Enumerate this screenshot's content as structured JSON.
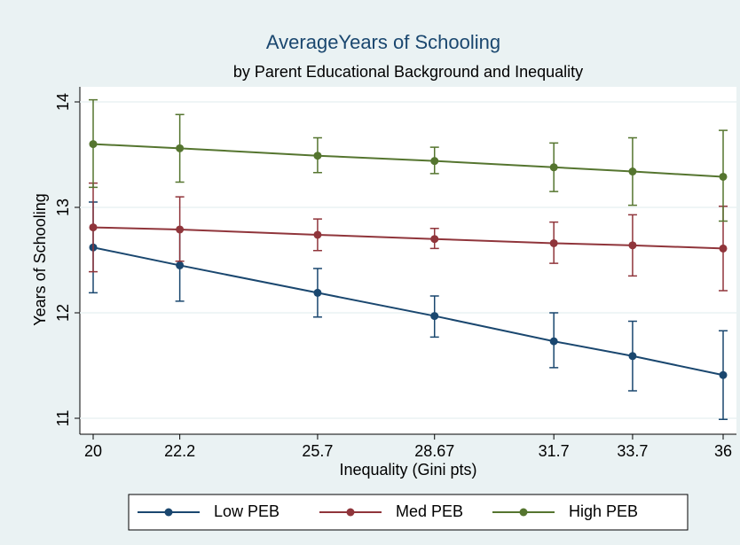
{
  "chart_data": {
    "type": "line",
    "title": "AverageYears of Schooling",
    "subtitle": "by Parent Educational Background and Inequality",
    "x_label": "Inequality (Gini pts)",
    "y_label": "Years of Schooling",
    "x": [
      20,
      22.2,
      25.7,
      28.67,
      31.7,
      33.7,
      36
    ],
    "xlim": [
      20,
      36
    ],
    "xticks": [
      20,
      22.2,
      25.7,
      28.67,
      31.7,
      33.7,
      36
    ],
    "ylim": [
      11,
      14
    ],
    "yticks": [
      11,
      12,
      13,
      14
    ],
    "grid": true,
    "legend": "bottom",
    "series": [
      {
        "name": "Low PEB",
        "color": "#1a476f",
        "values": [
          12.62,
          12.45,
          12.19,
          11.97,
          11.73,
          11.59,
          11.41
        ],
        "lower": [
          12.19,
          12.11,
          11.96,
          11.77,
          11.48,
          11.26,
          10.99
        ],
        "upper": [
          13.05,
          12.79,
          12.42,
          12.16,
          12.0,
          11.92,
          11.83
        ]
      },
      {
        "name": "Med PEB",
        "color": "#90353b",
        "values": [
          12.81,
          12.79,
          12.74,
          12.7,
          12.66,
          12.64,
          12.61
        ],
        "lower": [
          12.39,
          12.49,
          12.59,
          12.61,
          12.47,
          12.35,
          12.21
        ],
        "upper": [
          13.23,
          13.1,
          12.89,
          12.8,
          12.86,
          12.93,
          13.01
        ]
      },
      {
        "name": "High PEB",
        "color": "#55752f",
        "values": [
          13.6,
          13.56,
          13.49,
          13.44,
          13.38,
          13.34,
          13.29
        ],
        "lower": [
          13.19,
          13.24,
          13.33,
          13.32,
          13.15,
          13.02,
          12.87
        ],
        "upper": [
          14.02,
          13.88,
          13.66,
          13.57,
          13.61,
          13.66,
          13.73
        ]
      }
    ]
  }
}
